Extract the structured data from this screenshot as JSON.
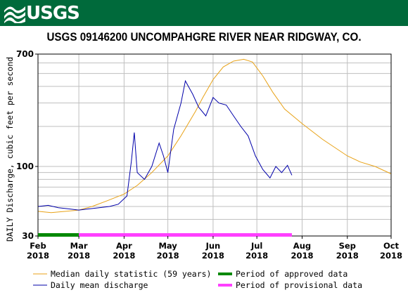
{
  "header": {
    "logo_text": "USGS",
    "title": "USGS 09146200 UNCOMPAHGRE RIVER NEAR RIDGWAY, CO."
  },
  "colors": {
    "brand": "#006a3b",
    "median": "#e8a217",
    "daily": "#0000aa",
    "approved": "#008800",
    "provisional": "#ff40ff",
    "grid": "#bfbfbf"
  },
  "chart_data": {
    "type": "line",
    "title": "USGS 09146200 UNCOMPAHGRE RIVER NEAR RIDGWAY, CO.",
    "ylabel": "DAILY Discharge, cubic feet per second",
    "xlabel": "",
    "yscale": "log",
    "ylim": [
      30,
      700
    ],
    "yticks": [
      30,
      100,
      700
    ],
    "xlim": [
      "2018-02-01",
      "2018-10-01"
    ],
    "xticks": [
      {
        "top": "Feb",
        "bottom": "2018",
        "date": "2018-02-01"
      },
      {
        "top": "Mar",
        "bottom": "2018",
        "date": "2018-03-01"
      },
      {
        "top": "Apr",
        "bottom": "2018",
        "date": "2018-04-01"
      },
      {
        "top": "May",
        "bottom": "2018",
        "date": "2018-05-01"
      },
      {
        "top": "Jun",
        "bottom": "2018",
        "date": "2018-06-01"
      },
      {
        "top": "Jul",
        "bottom": "2018",
        "date": "2018-07-01"
      },
      {
        "top": "Aug",
        "bottom": "2018",
        "date": "2018-08-01"
      },
      {
        "top": "Sep",
        "bottom": "2018",
        "date": "2018-09-01"
      },
      {
        "top": "Oct",
        "bottom": "2018",
        "date": "2018-10-01"
      }
    ],
    "grid": true,
    "series": [
      {
        "name": "Median daily statistic (59 years)",
        "color": "#e8a217",
        "points": [
          [
            "2018-02-01",
            46
          ],
          [
            "2018-02-10",
            45
          ],
          [
            "2018-02-20",
            46
          ],
          [
            "2018-03-01",
            47
          ],
          [
            "2018-03-10",
            50
          ],
          [
            "2018-03-20",
            55
          ],
          [
            "2018-04-01",
            62
          ],
          [
            "2018-04-10",
            72
          ],
          [
            "2018-04-20",
            90
          ],
          [
            "2018-05-01",
            120
          ],
          [
            "2018-05-10",
            170
          ],
          [
            "2018-05-20",
            260
          ],
          [
            "2018-05-25",
            330
          ],
          [
            "2018-06-01",
            450
          ],
          [
            "2018-06-08",
            560
          ],
          [
            "2018-06-15",
            620
          ],
          [
            "2018-06-22",
            640
          ],
          [
            "2018-06-28",
            610
          ],
          [
            "2018-07-05",
            480
          ],
          [
            "2018-07-12",
            360
          ],
          [
            "2018-07-20",
            270
          ],
          [
            "2018-08-01",
            210
          ],
          [
            "2018-08-15",
            160
          ],
          [
            "2018-09-01",
            120
          ],
          [
            "2018-09-10",
            108
          ],
          [
            "2018-09-20",
            100
          ],
          [
            "2018-10-01",
            88
          ]
        ]
      },
      {
        "name": "Daily mean discharge",
        "color": "#0000aa",
        "points": [
          [
            "2018-02-01",
            50
          ],
          [
            "2018-02-08",
            51
          ],
          [
            "2018-02-15",
            49
          ],
          [
            "2018-02-22",
            48
          ],
          [
            "2018-03-01",
            47
          ],
          [
            "2018-03-08",
            48
          ],
          [
            "2018-03-15",
            49
          ],
          [
            "2018-03-22",
            50
          ],
          [
            "2018-03-28",
            52
          ],
          [
            "2018-04-03",
            60
          ],
          [
            "2018-04-06",
            110
          ],
          [
            "2018-04-08",
            180
          ],
          [
            "2018-04-10",
            90
          ],
          [
            "2018-04-15",
            80
          ],
          [
            "2018-04-20",
            100
          ],
          [
            "2018-04-25",
            150
          ],
          [
            "2018-04-28",
            120
          ],
          [
            "2018-05-01",
            90
          ],
          [
            "2018-05-05",
            190
          ],
          [
            "2018-05-10",
            300
          ],
          [
            "2018-05-13",
            440
          ],
          [
            "2018-05-18",
            350
          ],
          [
            "2018-05-22",
            280
          ],
          [
            "2018-05-27",
            240
          ],
          [
            "2018-06-01",
            330
          ],
          [
            "2018-06-05",
            300
          ],
          [
            "2018-06-10",
            290
          ],
          [
            "2018-06-15",
            240
          ],
          [
            "2018-06-20",
            200
          ],
          [
            "2018-06-25",
            170
          ],
          [
            "2018-06-30",
            120
          ],
          [
            "2018-07-05",
            95
          ],
          [
            "2018-07-10",
            82
          ],
          [
            "2018-07-14",
            100
          ],
          [
            "2018-07-18",
            90
          ],
          [
            "2018-07-22",
            102
          ],
          [
            "2018-07-25",
            86
          ]
        ]
      }
    ],
    "periods": [
      {
        "name": "Period of approved data",
        "color": "#008800",
        "start": "2018-02-01",
        "end": "2018-03-01"
      },
      {
        "name": "Period of provisional data",
        "color": "#ff40ff",
        "start": "2018-03-01",
        "end": "2018-07-25"
      }
    ]
  }
}
